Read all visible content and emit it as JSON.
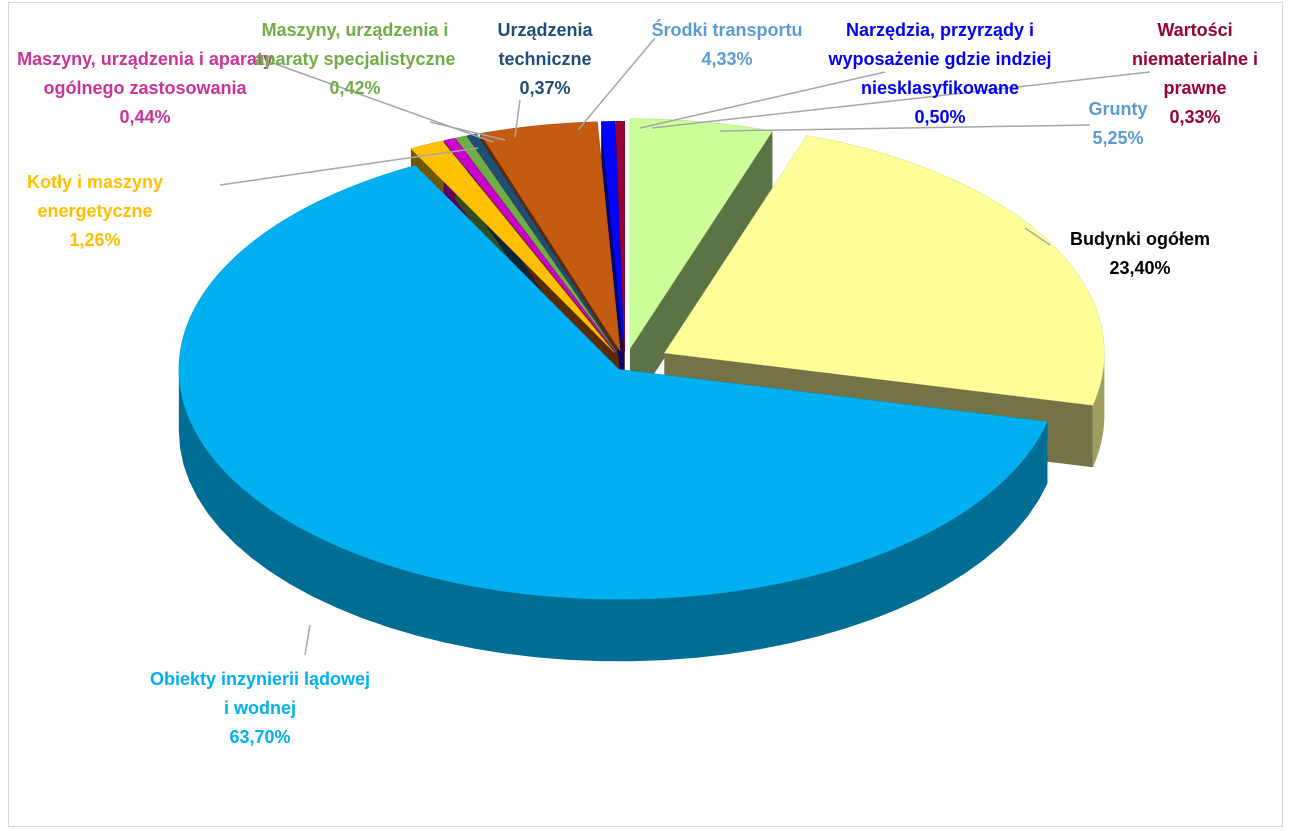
{
  "chart_data": {
    "type": "pie",
    "categories": [
      "Grunty",
      "Budynki ogółem",
      "Obiekty inzynierii lądowej i wodnej",
      "Kotły i maszyny energetyczne",
      "Maszyny, urządzenia i aparaty ogólnego zastosowania",
      "Maszyny, urządzenia i aparaty specjalistyczne",
      "Urządzenia techniczne",
      "Środki transportu",
      "Narzędzia, przyrządy i wyposażenie gdzie indziej niesklasyfikowane",
      "Wartości niematerialne i prawne"
    ],
    "values": [
      5.25,
      23.4,
      63.7,
      1.26,
      0.44,
      0.42,
      0.37,
      4.33,
      0.5,
      0.33
    ],
    "value_labels": [
      "5,25%",
      "23,40%",
      "63,70%",
      "1,26%",
      "0,44%",
      "0,42%",
      "0,37%",
      "4,33%",
      "0,50%",
      "0,33%"
    ],
    "colors": [
      "#ccff99",
      "#ffff99",
      "#00b0f0",
      "#ffc000",
      "#cc00cc",
      "#70ad47",
      "#1f4e79",
      "#c55a11",
      "#0000ff",
      "#990033"
    ],
    "label_colors": [
      "#5b9bd5",
      "#000000",
      "#00b0f0",
      "#ffc000",
      "#cc3399",
      "#70ad47",
      "#1f4e79",
      "#5b9bd5",
      "#0000ff",
      "#990033"
    ]
  }
}
